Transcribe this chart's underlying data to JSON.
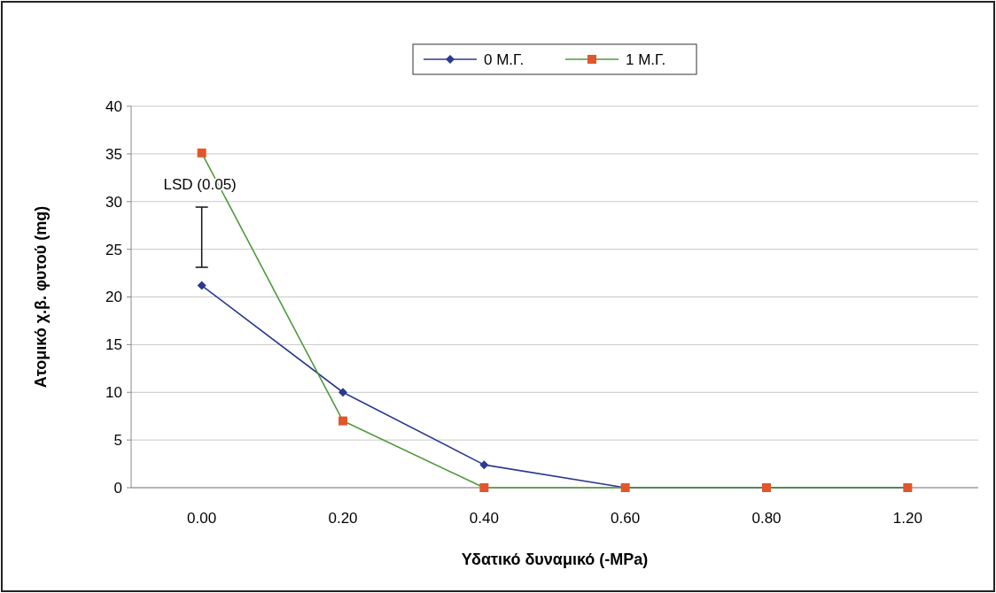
{
  "chart_data": {
    "type": "line",
    "xlabel": "Υδατικό δυναμικό (-MPa)",
    "ylabel": "Ατομικό χ.β. φυτού (mg)",
    "categories": [
      "0.00",
      "0.20",
      "0.40",
      "0.60",
      "0.80",
      "1.20"
    ],
    "series": [
      {
        "name": "0 Μ.Γ.",
        "color": "#2b3990",
        "marker": "diamond",
        "values": [
          21.2,
          10.0,
          2.4,
          0,
          0,
          0
        ]
      },
      {
        "name": "1 Μ.Γ.",
        "color": "#4f9a3c",
        "colors": [
          "#e2562b",
          "#e2562b",
          "#e2562b",
          "#e2562b",
          "#e2562b",
          "#e2562b"
        ],
        "marker": "square",
        "values": [
          35.1,
          7.0,
          0,
          0,
          0,
          0
        ]
      }
    ],
    "ylim": [
      0,
      40
    ],
    "yticks": [
      0,
      5,
      10,
      15,
      20,
      25,
      30,
      35,
      40
    ],
    "grid": "y",
    "legend": "top",
    "annotations": [
      "LSD (0.05)"
    ]
  }
}
